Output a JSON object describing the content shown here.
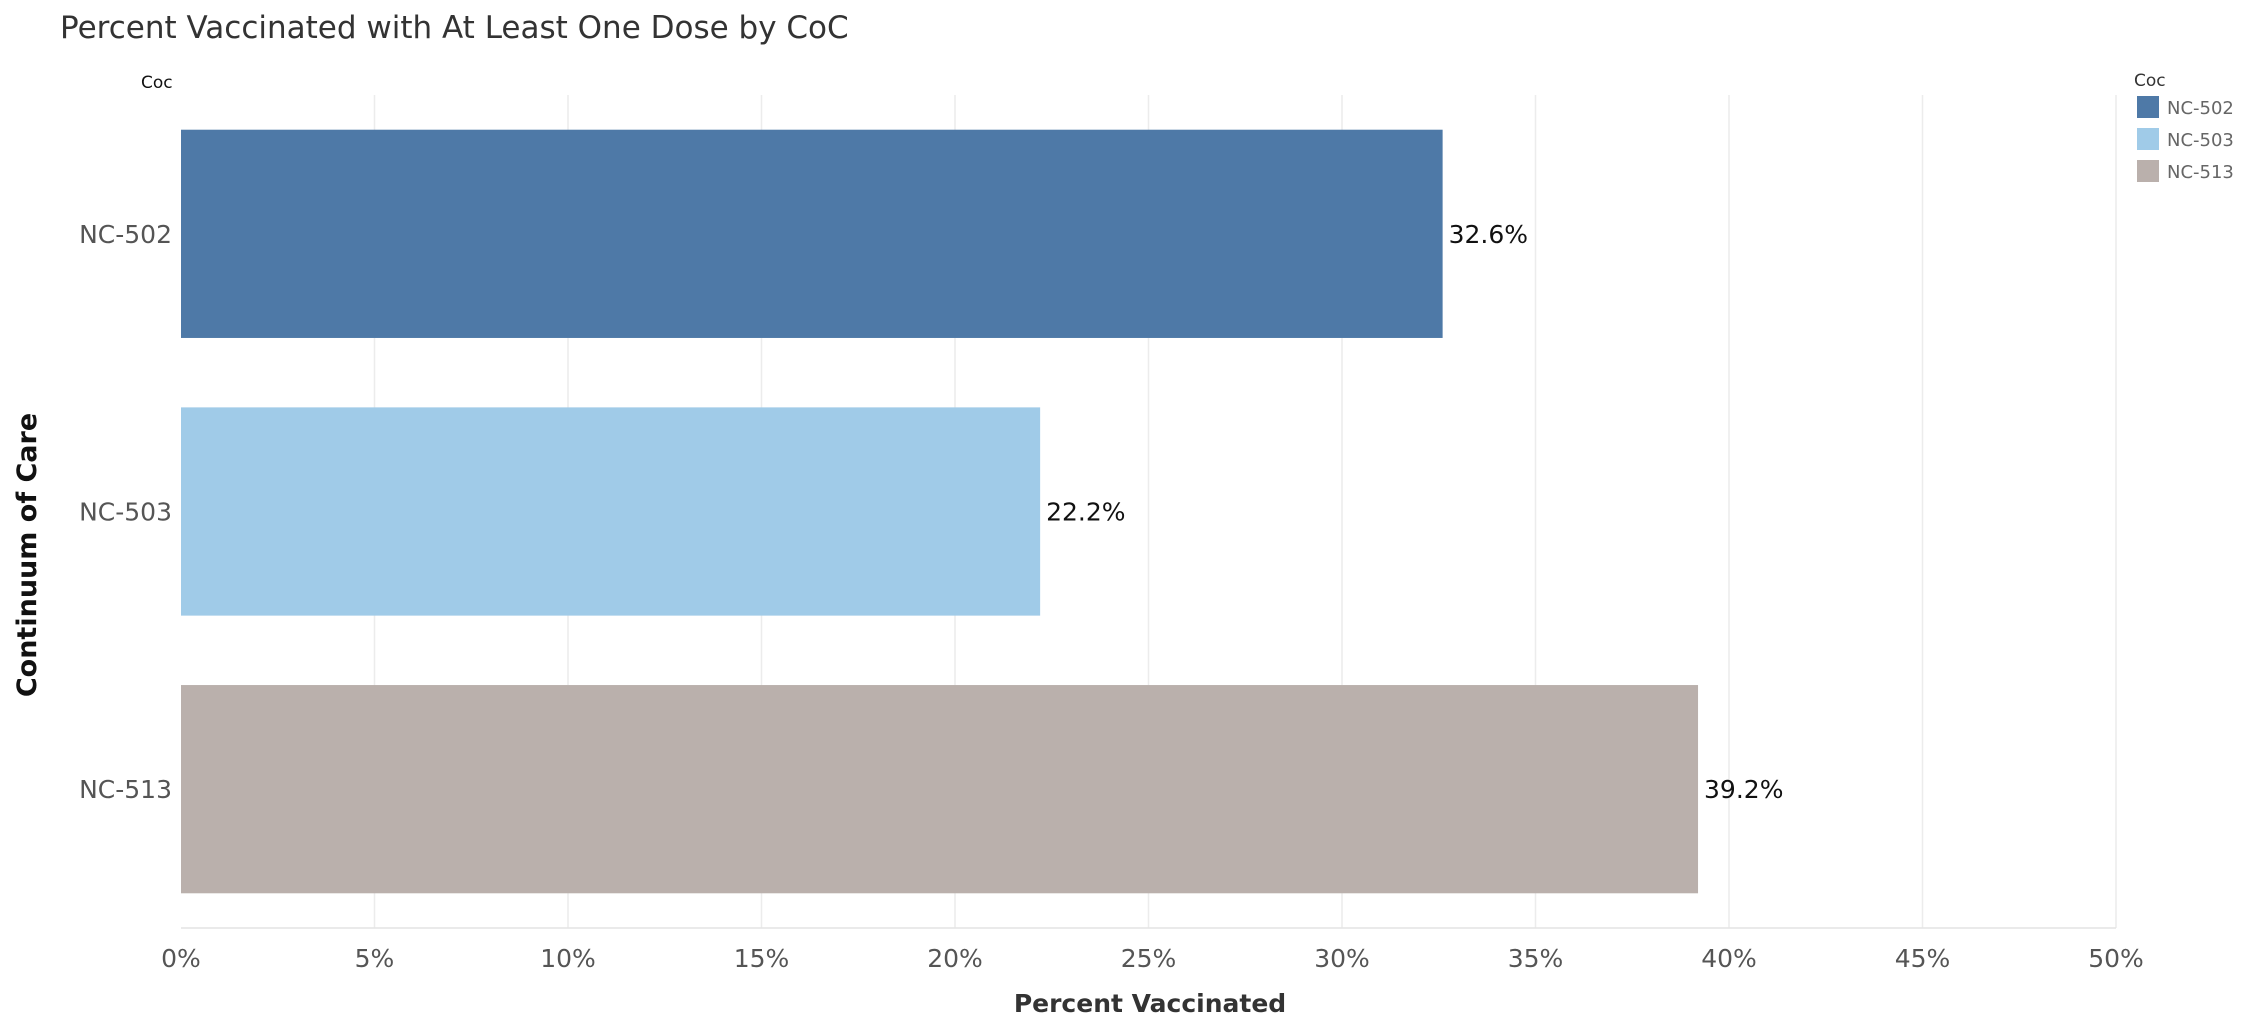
{
  "chart_data": {
    "type": "bar",
    "orientation": "horizontal",
    "title": "Percent Vaccinated with At Least One Dose by CoC",
    "categories": [
      "NC-502",
      "NC-503",
      "NC-513"
    ],
    "values": [
      32.6,
      22.2,
      39.2
    ],
    "value_labels": [
      "32.6%",
      "22.2%",
      "39.2%"
    ],
    "colors": [
      "#4e79a7",
      "#a0cbe8",
      "#bab0ac"
    ],
    "xlabel": "Percent Vaccinated",
    "ylabel": "Continuum of Care",
    "row_header": "Coc",
    "xlim": [
      0,
      50
    ],
    "x_ticks": [
      0,
      5,
      10,
      15,
      20,
      25,
      30,
      35,
      40,
      45,
      50
    ],
    "x_tick_labels": [
      "0%",
      "5%",
      "10%",
      "15%",
      "20%",
      "25%",
      "30%",
      "35%",
      "40%",
      "45%",
      "50%"
    ],
    "grid": true,
    "legend": {
      "title": "Coc",
      "placement": "top-right",
      "entries": [
        "NC-502",
        "NC-503",
        "NC-513"
      ]
    }
  }
}
